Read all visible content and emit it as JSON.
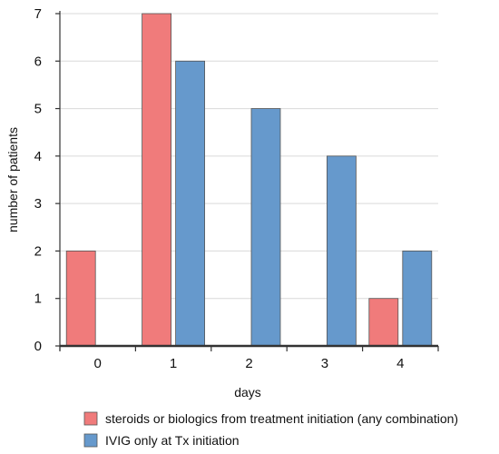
{
  "chart_data": {
    "type": "bar",
    "categories": [
      "0",
      "1",
      "2",
      "3",
      "4"
    ],
    "series": [
      {
        "name": "steroids or biologics from treatment initiation (any combination)",
        "color": "#f07b7b",
        "values": [
          2,
          7,
          0,
          0,
          1
        ]
      },
      {
        "name": "IVIG only at Tx initiation",
        "color": "#6699cc",
        "values": [
          0,
          6,
          5,
          4,
          2
        ]
      }
    ],
    "xlabel": "days",
    "ylabel": "number of patients",
    "ylim": [
      0,
      7
    ],
    "yticks": [
      "0",
      "1",
      "2",
      "3",
      "4",
      "5",
      "6",
      "7"
    ],
    "grid": true,
    "legend_position": "bottom"
  }
}
